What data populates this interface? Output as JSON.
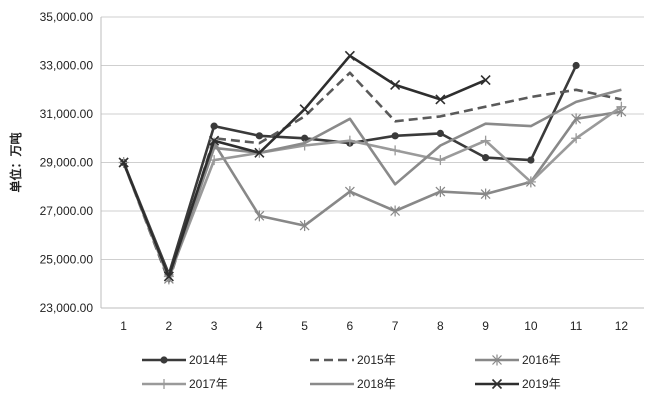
{
  "chart_data": {
    "type": "line",
    "title": "",
    "ylabel": "单位：万吨",
    "xlabel": "",
    "x": [
      1,
      2,
      3,
      4,
      5,
      6,
      7,
      8,
      9,
      10,
      11,
      12
    ],
    "ylim": [
      23000,
      35000
    ],
    "yticks": [
      23000,
      25000,
      27000,
      29000,
      31000,
      33000,
      35000
    ],
    "ytick_labels": [
      "23,000.00",
      "25,000.00",
      "27,000.00",
      "29,000.00",
      "31,000.00",
      "33,000.00",
      "35,000.00"
    ],
    "grid": "horizontal",
    "legend_position": "bottom",
    "series": [
      {
        "name": "2014年",
        "color": "#3a3a3a",
        "style": "solid",
        "marker": "dot",
        "values": [
          29000,
          24400,
          30500,
          30100,
          30000,
          29800,
          30100,
          30200,
          29200,
          29100,
          33000,
          null
        ]
      },
      {
        "name": "2015年",
        "color": "#5a5a5a",
        "style": "dashed",
        "marker": "none",
        "values": [
          29000,
          24100,
          30000,
          29800,
          30900,
          32700,
          30700,
          30900,
          31300,
          31700,
          32000,
          31600
        ]
      },
      {
        "name": "2016年",
        "color": "#888888",
        "style": "solid",
        "marker": "asterisk",
        "values": [
          29000,
          24200,
          29800,
          26800,
          26400,
          27800,
          27000,
          27800,
          27700,
          28200,
          30800,
          31100
        ]
      },
      {
        "name": "2017年",
        "color": "#9a9a9a",
        "style": "solid",
        "marker": "plus",
        "values": [
          29000,
          24300,
          29100,
          29400,
          29700,
          29900,
          29500,
          29100,
          29900,
          28200,
          30000,
          31300
        ]
      },
      {
        "name": "2018年",
        "color": "#8a8a8a",
        "style": "solid",
        "marker": "none",
        "values": [
          29000,
          24200,
          29600,
          29400,
          29800,
          30800,
          28100,
          29700,
          30600,
          30500,
          31500,
          32000
        ]
      },
      {
        "name": "2019年",
        "color": "#2e2e2e",
        "style": "solid",
        "marker": "x",
        "values": [
          29000,
          24300,
          29900,
          29400,
          31200,
          33400,
          32200,
          31600,
          32400,
          null,
          null,
          null
        ]
      }
    ]
  }
}
